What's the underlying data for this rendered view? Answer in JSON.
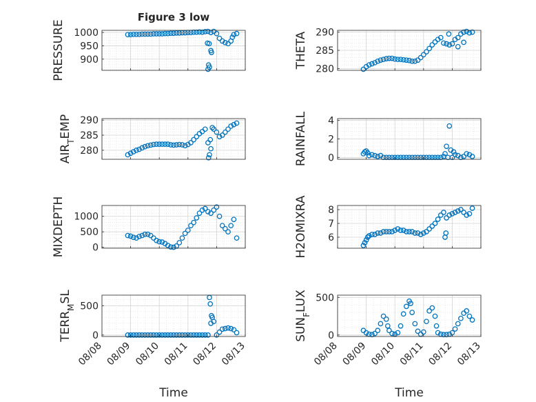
{
  "figure": {
    "title": "Figure 3 low",
    "xlabel": "Time"
  },
  "x_ticks": [
    "08/08",
    "08/09",
    "08/10",
    "08/11",
    "08/12",
    "08/13"
  ],
  "chart_data": [
    {
      "type": "scatter",
      "name": "pressure",
      "ylabel": "PRESSURE",
      "ylabel_sub": "",
      "xlim": [
        0,
        5
      ],
      "ylim": [
        858,
        1008
      ],
      "yticks": [
        1000,
        950,
        900
      ],
      "ytick_labels": [
        "1000",
        "950",
        "900"
      ],
      "x": [
        0.9,
        1.0,
        1.1,
        1.2,
        1.3,
        1.4,
        1.5,
        1.6,
        1.7,
        1.8,
        1.9,
        2.0,
        2.1,
        2.2,
        2.3,
        2.4,
        2.5,
        2.6,
        2.7,
        2.8,
        2.9,
        3.0,
        3.1,
        3.2,
        3.3,
        3.4,
        3.5,
        3.6,
        3.7,
        3.8,
        3.9,
        4.0,
        4.1,
        4.2,
        4.3,
        4.4,
        4.5,
        4.55,
        4.6,
        4.7,
        3.68,
        3.72,
        3.75,
        3.8,
        3.82,
        3.7,
        3.74
      ],
      "y": [
        992,
        992,
        993,
        993,
        993,
        994,
        994,
        994,
        994,
        995,
        995,
        995,
        995,
        996,
        996,
        997,
        997,
        998,
        998,
        999,
        999,
        1000,
        1000,
        1001,
        1001,
        1002,
        1001,
        1003,
        1004,
        1000,
        1004,
        996,
        978,
        968,
        962,
        958,
        968,
        982,
        992,
        996,
        960,
        878,
        870,
        932,
        925,
        862,
        958
      ]
    },
    {
      "type": "scatter",
      "name": "theta",
      "ylabel": "THETA",
      "ylabel_sub": "",
      "xlim": [
        0,
        5
      ],
      "ylim": [
        279.5,
        290.5
      ],
      "yticks": [
        290,
        285,
        280
      ],
      "ytick_labels": [
        "290",
        "285",
        "280"
      ],
      "x": [
        0.9,
        1.0,
        1.1,
        1.2,
        1.3,
        1.4,
        1.5,
        1.6,
        1.7,
        1.8,
        1.9,
        2.0,
        2.1,
        2.2,
        2.3,
        2.4,
        2.5,
        2.6,
        2.7,
        2.8,
        2.9,
        3.0,
        3.1,
        3.2,
        3.3,
        3.4,
        3.5,
        3.6,
        3.7,
        3.8,
        3.9,
        4.0,
        4.1,
        4.2,
        4.3,
        4.4,
        4.5,
        4.6,
        4.7,
        3.88,
        4.2,
        4.4
      ],
      "y": [
        279.8,
        280.5,
        281.0,
        281.3,
        281.6,
        282.0,
        282.3,
        282.5,
        282.7,
        282.8,
        282.8,
        282.6,
        282.5,
        282.5,
        282.4,
        282.3,
        282.2,
        282.0,
        282.0,
        282.3,
        283.0,
        283.8,
        284.6,
        285.5,
        286.5,
        287.3,
        288.0,
        288.5,
        287.0,
        286.8,
        286.5,
        286.8,
        288.0,
        288.5,
        289.5,
        290.0,
        290.2,
        289.8,
        290.0,
        289.5,
        286.0,
        287.2
      ]
    },
    {
      "type": "scatter",
      "name": "air_temp",
      "ylabel": "AIR",
      "ylabel_sub": "T",
      "ylabel_suffix": "EMP",
      "xlim": [
        0,
        5
      ],
      "ylim": [
        277,
        290.5
      ],
      "yticks": [
        290,
        285,
        280
      ],
      "ytick_labels": [
        "290",
        "285",
        "280"
      ],
      "x": [
        0.9,
        1.0,
        1.1,
        1.2,
        1.3,
        1.4,
        1.5,
        1.6,
        1.7,
        1.8,
        1.9,
        2.0,
        2.1,
        2.2,
        2.3,
        2.4,
        2.5,
        2.6,
        2.7,
        2.8,
        2.9,
        3.0,
        3.1,
        3.2,
        3.3,
        3.4,
        3.5,
        3.6,
        3.7,
        3.72,
        3.75,
        3.78,
        3.8,
        3.85,
        3.9,
        4.0,
        4.1,
        4.2,
        4.3,
        4.4,
        4.5,
        4.6,
        4.7
      ],
      "y": [
        278.5,
        279.0,
        279.5,
        280.0,
        280.3,
        280.8,
        281.2,
        281.5,
        281.7,
        281.9,
        282.0,
        282.0,
        282.0,
        282.0,
        282.0,
        281.8,
        281.7,
        281.8,
        281.9,
        281.8,
        281.5,
        281.9,
        282.5,
        283.5,
        284.5,
        285.5,
        286.2,
        287.0,
        282.5,
        277.5,
        278.5,
        283.5,
        280.5,
        287.5,
        287.0,
        286.0,
        284.5,
        285.0,
        286.0,
        287.0,
        288.0,
        288.5,
        289.0
      ]
    },
    {
      "type": "scatter",
      "name": "rainfall",
      "ylabel": "RAINFALL",
      "ylabel_sub": "",
      "xlim": [
        0,
        5
      ],
      "ylim": [
        -0.2,
        4.2
      ],
      "yticks": [
        4,
        2,
        0
      ],
      "ytick_labels": [
        "4",
        "2",
        "0"
      ],
      "x": [
        0.9,
        0.95,
        1.0,
        1.05,
        1.1,
        1.2,
        1.3,
        1.4,
        1.5,
        1.6,
        1.7,
        1.8,
        1.9,
        2.0,
        2.1,
        2.2,
        2.3,
        2.4,
        2.5,
        2.6,
        2.7,
        2.8,
        2.9,
        3.0,
        3.1,
        3.2,
        3.3,
        3.4,
        3.5,
        3.6,
        3.7,
        3.75,
        3.8,
        3.85,
        3.9,
        3.95,
        4.0,
        4.05,
        4.1,
        4.2,
        4.3,
        4.4,
        4.5,
        4.6,
        4.7
      ],
      "y": [
        0.4,
        0.6,
        0.7,
        0.5,
        0.2,
        0.3,
        0.2,
        0.1,
        0.2,
        0.0,
        0.0,
        0.0,
        0.0,
        0.0,
        0.0,
        0.0,
        0.0,
        0.0,
        0.0,
        0.0,
        0.0,
        0.0,
        0.0,
        0.0,
        0.0,
        0.0,
        0.0,
        0.0,
        0.0,
        0.0,
        0.1,
        0.4,
        1.2,
        0.0,
        3.4,
        0.8,
        0.0,
        0.6,
        0.3,
        0.2,
        0.0,
        0.1,
        0.4,
        0.3,
        0.1
      ]
    },
    {
      "type": "scatter",
      "name": "mixdepth",
      "ylabel": "MIXDEPTH",
      "ylabel_sub": "",
      "xlim": [
        0,
        5
      ],
      "ylim": [
        -30,
        1350
      ],
      "yticks": [
        1000,
        500,
        0
      ],
      "ytick_labels": [
        "1000",
        "500",
        "0"
      ],
      "x": [
        0.9,
        1.0,
        1.1,
        1.2,
        1.3,
        1.4,
        1.5,
        1.6,
        1.7,
        1.8,
        1.9,
        2.0,
        2.1,
        2.2,
        2.3,
        2.4,
        2.5,
        2.6,
        2.7,
        2.8,
        2.9,
        3.0,
        3.1,
        3.2,
        3.3,
        3.4,
        3.5,
        3.6,
        3.7,
        3.8,
        3.9,
        4.0,
        4.1,
        4.2,
        4.3,
        4.4,
        4.5,
        4.6,
        4.7
      ],
      "y": [
        380,
        360,
        320,
        300,
        350,
        380,
        420,
        420,
        380,
        300,
        220,
        180,
        170,
        120,
        60,
        10,
        0,
        40,
        150,
        300,
        450,
        550,
        700,
        800,
        950,
        1100,
        1200,
        1250,
        1150,
        1100,
        1200,
        1300,
        1000,
        700,
        600,
        500,
        700,
        900,
        300
      ]
    },
    {
      "type": "scatter",
      "name": "h2omixra",
      "ylabel": "H2OMIXRA",
      "ylabel_sub": "",
      "xlim": [
        0,
        5
      ],
      "ylim": [
        5.2,
        8.3
      ],
      "yticks": [
        8,
        7,
        6
      ],
      "ytick_labels": [
        "8",
        "7",
        "6"
      ],
      "x": [
        0.9,
        0.95,
        1.0,
        1.05,
        1.1,
        1.2,
        1.3,
        1.4,
        1.5,
        1.6,
        1.7,
        1.8,
        1.9,
        2.0,
        2.1,
        2.2,
        2.3,
        2.4,
        2.5,
        2.6,
        2.7,
        2.8,
        2.9,
        3.0,
        3.1,
        3.2,
        3.3,
        3.4,
        3.5,
        3.6,
        3.7,
        3.8,
        3.9,
        3.75,
        3.78,
        4.0,
        4.1,
        4.2,
        4.3,
        4.4,
        4.5,
        4.6,
        4.7
      ],
      "y": [
        5.4,
        5.6,
        5.8,
        6.0,
        6.1,
        6.2,
        6.2,
        6.3,
        6.3,
        6.4,
        6.4,
        6.4,
        6.4,
        6.5,
        6.6,
        6.5,
        6.5,
        6.4,
        6.4,
        6.4,
        6.3,
        6.3,
        6.2,
        6.3,
        6.4,
        6.6,
        6.8,
        7.0,
        7.3,
        7.6,
        7.8,
        7.4,
        7.6,
        6.0,
        6.3,
        7.7,
        7.8,
        7.9,
        8.0,
        7.8,
        7.6,
        7.7,
        8.1
      ]
    },
    {
      "type": "scatter",
      "name": "terr_msl",
      "ylabel": "TERR",
      "ylabel_sub": "M",
      "ylabel_suffix": "SL",
      "xlim": [
        0,
        5
      ],
      "ylim": [
        -25,
        680
      ],
      "yticks": [
        500,
        0
      ],
      "ytick_labels": [
        "500",
        "0"
      ],
      "x": [
        0.9,
        1.0,
        1.1,
        1.2,
        1.3,
        1.4,
        1.5,
        1.6,
        1.7,
        1.8,
        1.9,
        2.0,
        2.1,
        2.2,
        2.3,
        2.4,
        2.5,
        2.6,
        2.7,
        2.8,
        2.9,
        3.0,
        3.1,
        3.2,
        3.3,
        3.4,
        3.5,
        3.6,
        3.7,
        3.75,
        3.78,
        3.8,
        3.82,
        3.85,
        3.9,
        4.0,
        4.1,
        4.2,
        4.3,
        4.4,
        4.5,
        4.6,
        4.7
      ],
      "y": [
        0,
        0,
        0,
        0,
        0,
        0,
        0,
        0,
        0,
        0,
        0,
        0,
        0,
        0,
        0,
        0,
        0,
        0,
        0,
        0,
        0,
        0,
        0,
        0,
        0,
        0,
        0,
        0,
        0,
        640,
        530,
        200,
        330,
        300,
        230,
        0,
        50,
        100,
        110,
        120,
        110,
        90,
        40
      ]
    },
    {
      "type": "scatter",
      "name": "sun_flux",
      "ylabel": "SUN",
      "ylabel_sub": "F",
      "ylabel_suffix": "LUX",
      "xlim": [
        0,
        5
      ],
      "ylim": [
        -20,
        530
      ],
      "yticks": [
        500,
        0
      ],
      "ytick_labels": [
        "500",
        "0"
      ],
      "x": [
        0.9,
        1.0,
        1.1,
        1.2,
        1.3,
        1.4,
        1.5,
        1.6,
        1.7,
        1.75,
        1.8,
        1.9,
        2.0,
        2.1,
        2.2,
        2.3,
        2.4,
        2.5,
        2.55,
        2.6,
        2.7,
        2.8,
        2.9,
        3.0,
        3.1,
        3.2,
        3.3,
        3.4,
        3.45,
        3.5,
        3.6,
        3.7,
        3.8,
        3.9,
        4.0,
        4.1,
        4.2,
        4.3,
        4.4,
        4.5,
        4.6,
        4.7
      ],
      "y": [
        60,
        30,
        10,
        5,
        20,
        60,
        150,
        250,
        210,
        120,
        60,
        20,
        10,
        30,
        120,
        280,
        380,
        450,
        420,
        300,
        150,
        50,
        10,
        40,
        180,
        320,
        360,
        250,
        120,
        30,
        10,
        5,
        5,
        10,
        30,
        80,
        150,
        220,
        290,
        320,
        250,
        200
      ]
    }
  ]
}
